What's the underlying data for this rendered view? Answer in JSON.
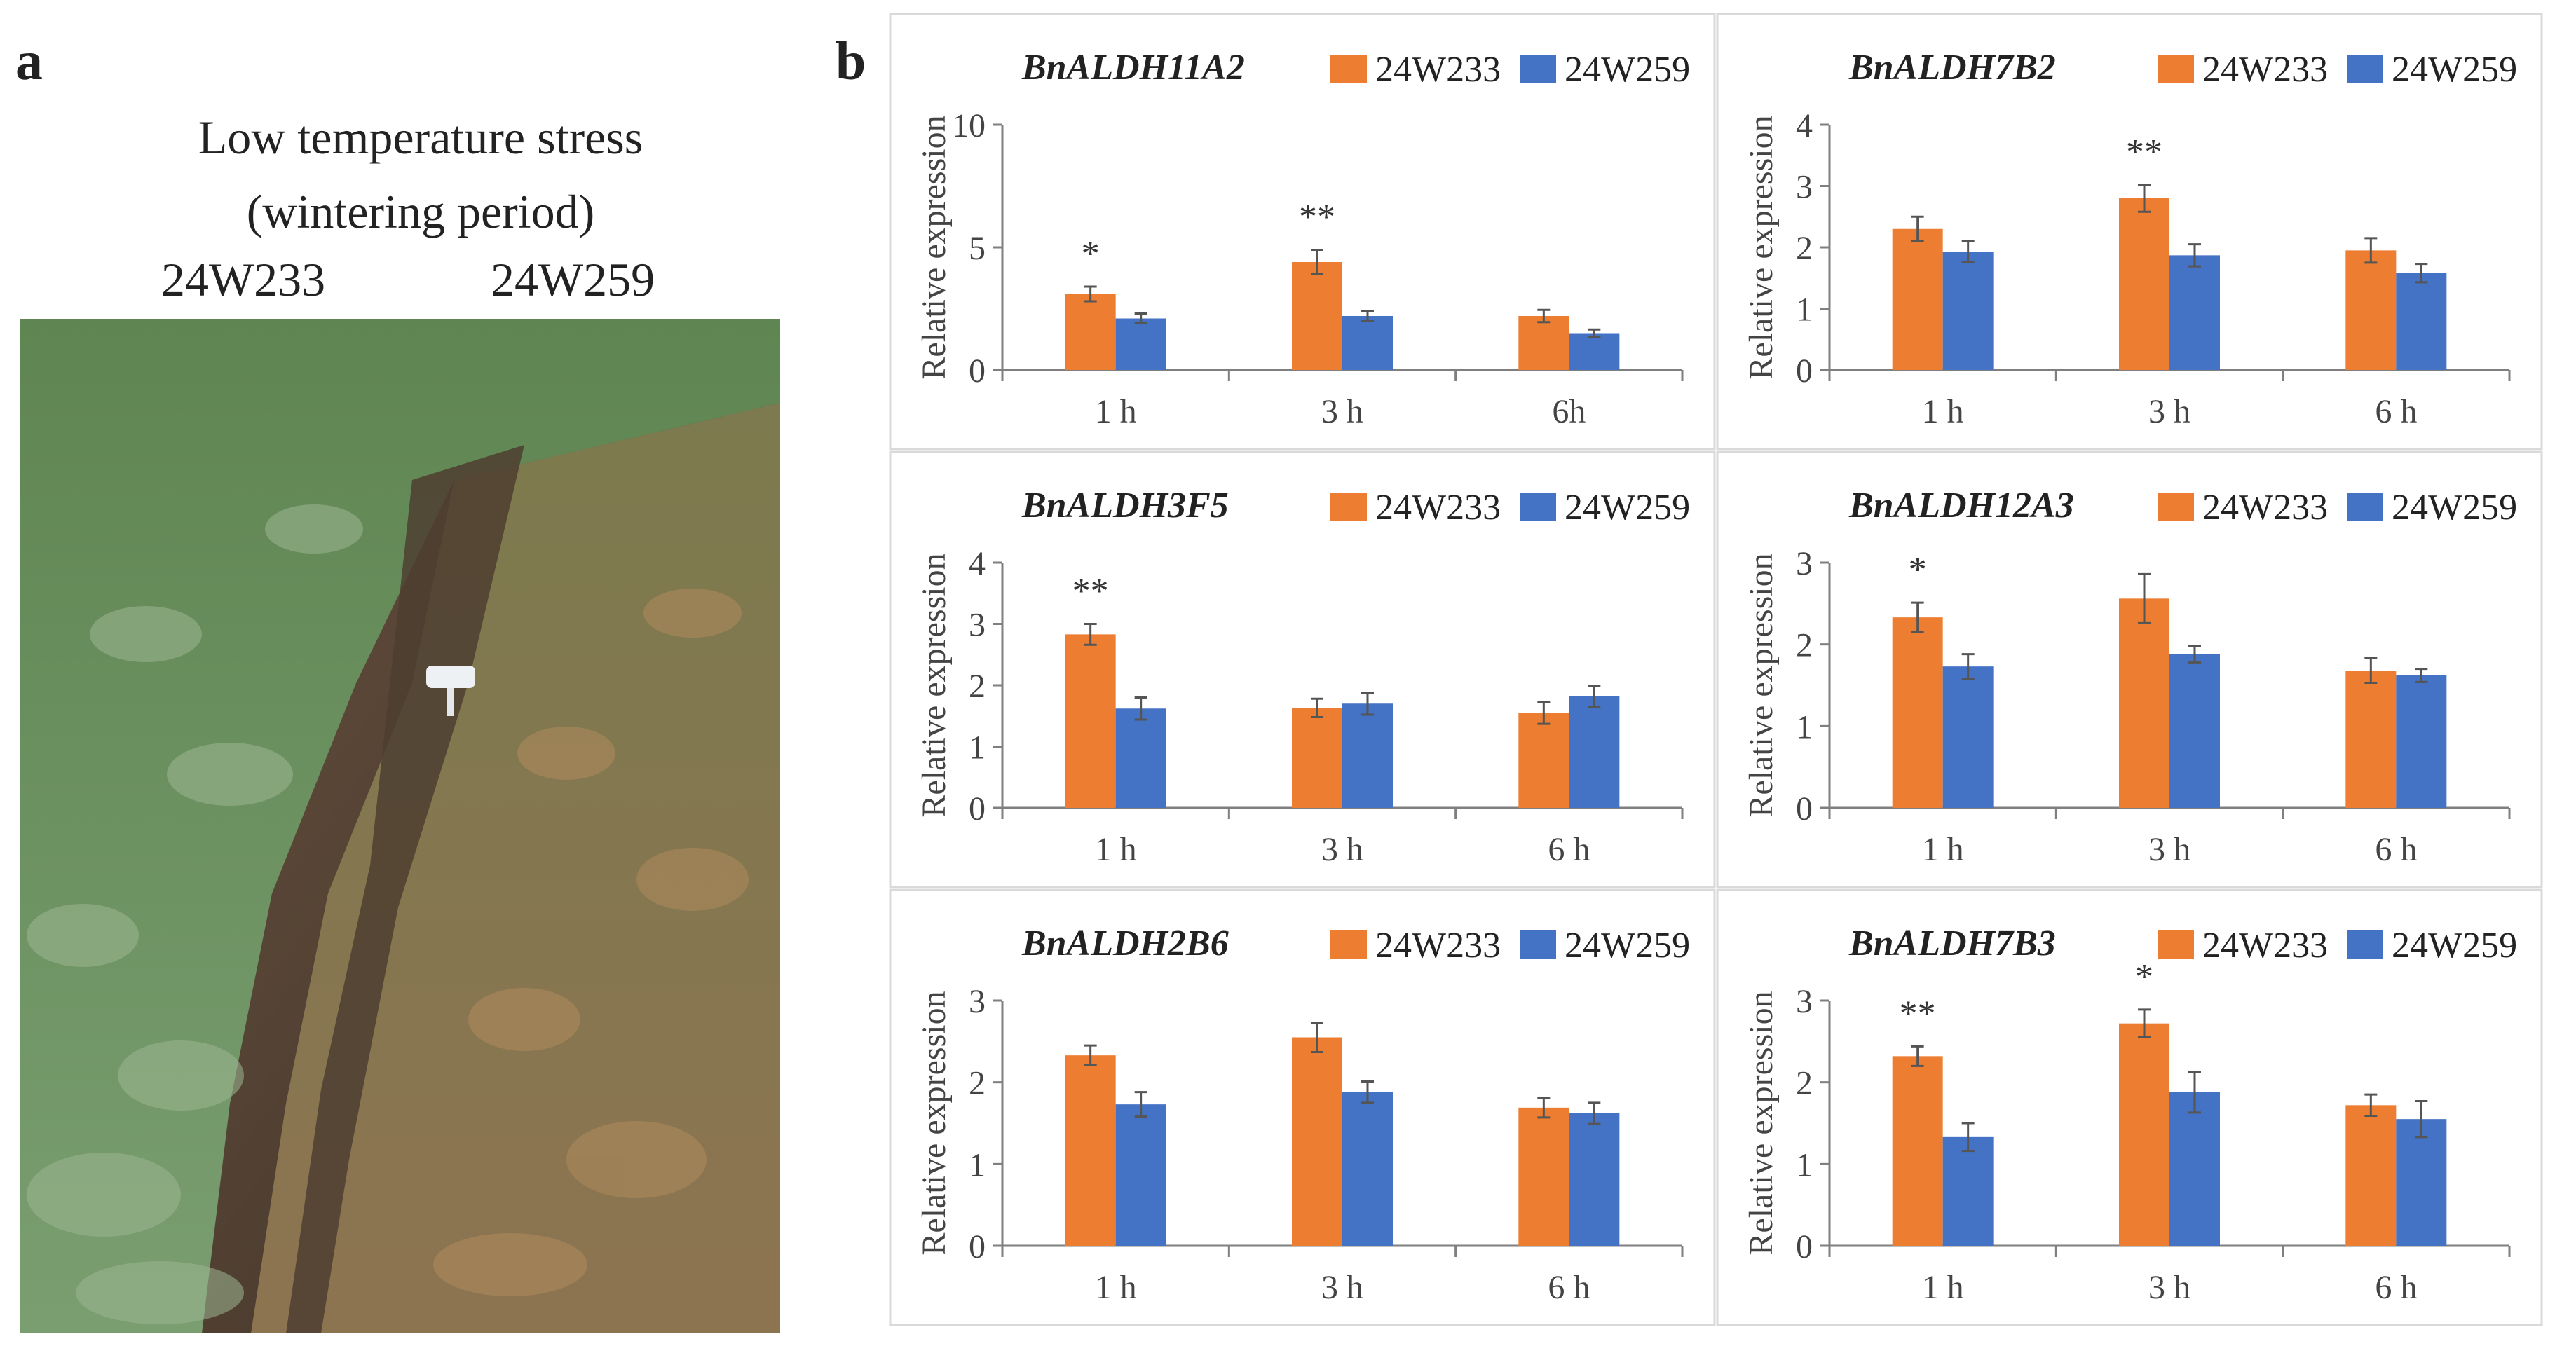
{
  "panel_a": {
    "label": "a",
    "title_line1": "Low temperature stress",
    "title_line2": "(wintering period)",
    "genotype_left": "24W233",
    "genotype_right": "24W259"
  },
  "panel_b": {
    "label": "b"
  },
  "colors": {
    "series1": "#ED7D31",
    "series2": "#4472C4",
    "axis": "#7F7F7F",
    "panel_border": "#D9D9D9"
  },
  "chart_data": [
    {
      "type": "bar",
      "title": "BnALDH11A2",
      "ylabel": "Relative expression",
      "xlabel": "",
      "categories": [
        "1 h",
        "3 h",
        "6h"
      ],
      "ylim": [
        0,
        10
      ],
      "yticks": [
        0,
        5,
        10
      ],
      "series": [
        {
          "name": "24W233",
          "values": [
            3.1,
            4.4,
            2.2
          ],
          "errors": [
            0.3,
            0.5,
            0.25
          ]
        },
        {
          "name": "24W259",
          "values": [
            2.1,
            2.2,
            1.5
          ],
          "errors": [
            0.2,
            0.2,
            0.15
          ]
        }
      ],
      "significance": [
        "*",
        "**",
        ""
      ]
    },
    {
      "type": "bar",
      "title": "BnALDH7B2",
      "ylabel": "Relative expression",
      "xlabel": "",
      "categories": [
        "1 h",
        "3 h",
        "6 h"
      ],
      "ylim": [
        0,
        4
      ],
      "yticks": [
        0,
        1,
        2,
        3,
        4
      ],
      "series": [
        {
          "name": "24W233",
          "values": [
            2.3,
            2.8,
            1.95
          ],
          "errors": [
            0.2,
            0.22,
            0.2
          ]
        },
        {
          "name": "24W259",
          "values": [
            1.93,
            1.87,
            1.58
          ],
          "errors": [
            0.17,
            0.18,
            0.15
          ]
        }
      ],
      "significance": [
        "",
        "**",
        ""
      ]
    },
    {
      "type": "bar",
      "title": "BnALDH3F5",
      "ylabel": "Relative expression",
      "xlabel": "",
      "categories": [
        "1 h",
        "3 h",
        "6 h"
      ],
      "ylim": [
        0,
        4
      ],
      "yticks": [
        0,
        1,
        2,
        3,
        4
      ],
      "series": [
        {
          "name": "24W233",
          "values": [
            2.83,
            1.63,
            1.55
          ],
          "errors": [
            0.17,
            0.15,
            0.18
          ]
        },
        {
          "name": "24W259",
          "values": [
            1.62,
            1.7,
            1.82
          ],
          "errors": [
            0.18,
            0.18,
            0.17
          ]
        }
      ],
      "significance": [
        "**",
        "",
        ""
      ]
    },
    {
      "type": "bar",
      "title": "BnALDH12A3",
      "ylabel": "Relative expression",
      "xlabel": "",
      "categories": [
        "1 h",
        "3 h",
        "6 h"
      ],
      "ylim": [
        0,
        3
      ],
      "yticks": [
        0,
        1,
        2,
        3
      ],
      "series": [
        {
          "name": "24W233",
          "values": [
            2.33,
            2.56,
            1.68
          ],
          "errors": [
            0.18,
            0.3,
            0.15
          ]
        },
        {
          "name": "24W259",
          "values": [
            1.73,
            1.88,
            1.62
          ],
          "errors": [
            0.15,
            0.1,
            0.08
          ]
        }
      ],
      "significance": [
        "*",
        "",
        ""
      ]
    },
    {
      "type": "bar",
      "title": "BnALDH2B6",
      "ylabel": "Relative expression",
      "xlabel": "",
      "categories": [
        "1 h",
        "3 h",
        "6 h"
      ],
      "ylim": [
        0,
        3
      ],
      "yticks": [
        0,
        1,
        2,
        3
      ],
      "series": [
        {
          "name": "24W233",
          "values": [
            2.33,
            2.55,
            1.69
          ],
          "errors": [
            0.12,
            0.18,
            0.12
          ]
        },
        {
          "name": "24W259",
          "values": [
            1.73,
            1.88,
            1.62
          ],
          "errors": [
            0.15,
            0.13,
            0.13
          ]
        }
      ],
      "significance": [
        "",
        "",
        ""
      ]
    },
    {
      "type": "bar",
      "title": "BnALDH7B3",
      "ylabel": "Relative expression",
      "xlabel": "",
      "categories": [
        "1 h",
        "3 h",
        "6 h"
      ],
      "ylim": [
        0,
        3
      ],
      "yticks": [
        0,
        1,
        2,
        3
      ],
      "series": [
        {
          "name": "24W233",
          "values": [
            2.32,
            2.72,
            1.72
          ],
          "errors": [
            0.12,
            0.17,
            0.13
          ]
        },
        {
          "name": "24W259",
          "values": [
            1.33,
            1.88,
            1.55
          ],
          "errors": [
            0.17,
            0.25,
            0.22
          ]
        }
      ],
      "significance": [
        "**",
        "*",
        ""
      ]
    }
  ]
}
